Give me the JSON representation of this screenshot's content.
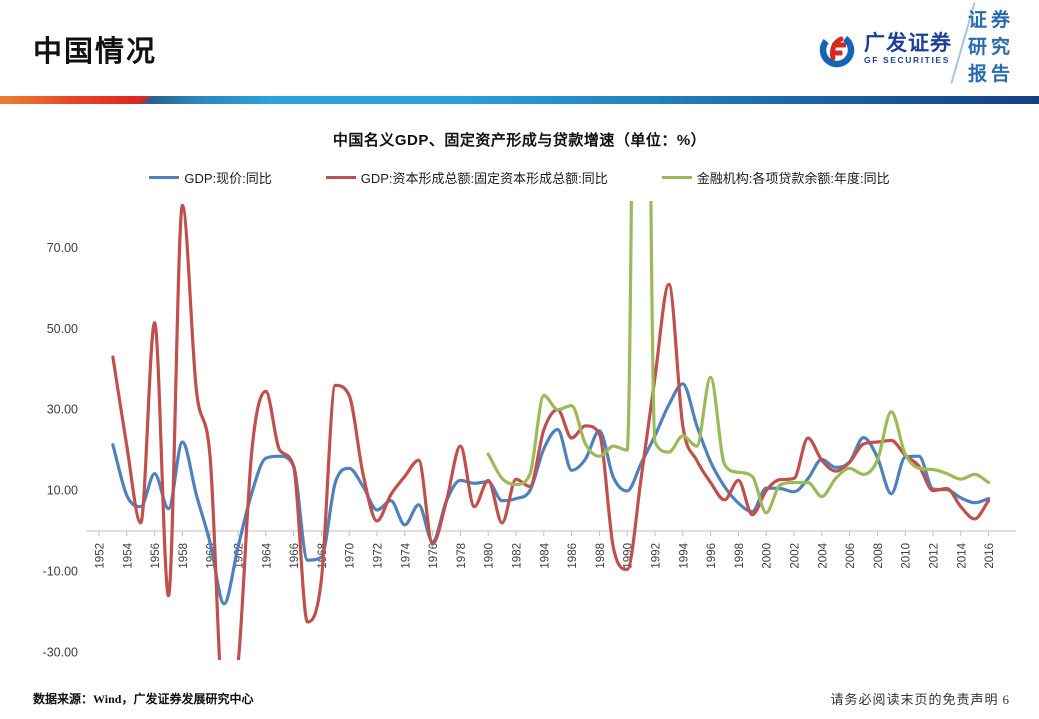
{
  "header": {
    "title": "中国情况",
    "brand": {
      "name_cn": "广发证券",
      "name_en": "GF SECURITIES",
      "report_label_lines": [
        "证券",
        "研究",
        "报告"
      ],
      "brand_blue": "#1d3f97",
      "brand_red": "#d42a23"
    }
  },
  "footer": {
    "source": "数据来源：Wind，广发证券发展研究中心",
    "disclaimer": "请务必阅读末页的免责声明",
    "page_number": "6"
  },
  "chart_data": {
    "type": "line",
    "title": "中国名义GDP、固定资产形成与贷款增速（单位：%）",
    "xlabel": "",
    "ylabel": "",
    "grid": false,
    "legend_position": "top",
    "ylim_plotted": [
      -32,
      82
    ],
    "y_ticks": [
      70,
      50,
      30,
      10,
      -10,
      -30
    ],
    "y_tick_labels": [
      "70.00",
      "50.00",
      "30.00",
      "10.00",
      "-10.00",
      "-30.00"
    ],
    "x_tick_labels": [
      "1952",
      "1954",
      "1956",
      "1958",
      "1960",
      "1962",
      "1964",
      "1966",
      "1968",
      "1970",
      "1972",
      "1974",
      "1976",
      "1978",
      "1980",
      "1982",
      "1984",
      "1986",
      "1988",
      "1990",
      "1992",
      "1994",
      "1996",
      "1998",
      "2000",
      "2002",
      "2004",
      "2006",
      "2008",
      "2010",
      "2012",
      "2014",
      "2016"
    ],
    "x": [
      1952,
      1953,
      1954,
      1955,
      1956,
      1957,
      1958,
      1959,
      1960,
      1961,
      1962,
      1963,
      1964,
      1965,
      1966,
      1967,
      1968,
      1969,
      1970,
      1971,
      1972,
      1973,
      1974,
      1975,
      1976,
      1977,
      1978,
      1979,
      1980,
      1981,
      1982,
      1983,
      1984,
      1985,
      1986,
      1987,
      1988,
      1989,
      1990,
      1991,
      1992,
      1993,
      1994,
      1995,
      1996,
      1997,
      1998,
      1999,
      2000,
      2001,
      2002,
      2003,
      2004,
      2005,
      2006,
      2007,
      2008,
      2009,
      2010,
      2011,
      2012,
      2013,
      2014,
      2015,
      2016
    ],
    "series": [
      {
        "name": "GDP:现价:同比",
        "color": "#4F81BD",
        "values": [
          null,
          21.3,
          8.8,
          6.0,
          14.2,
          5.5,
          22.0,
          9.0,
          -3.0,
          -18.0,
          -4.0,
          9.5,
          18.0,
          18.5,
          16.0,
          -7.2,
          -6.5,
          12.0,
          15.5,
          11.0,
          5.2,
          7.5,
          1.5,
          6.5,
          -2.7,
          7.5,
          12.5,
          11.8,
          12.2,
          7.5,
          8.0,
          10.0,
          20.3,
          25.1,
          15.0,
          17.8,
          24.8,
          13.3,
          9.9,
          16.7,
          23.6,
          31.2,
          36.4,
          26.1,
          17.1,
          11.0,
          6.9,
          4.8,
          10.6,
          10.5,
          9.7,
          12.9,
          17.7,
          15.7,
          17.1,
          23.1,
          18.2,
          9.2,
          18.3,
          18.5,
          10.4,
          10.2,
          8.2,
          7.0,
          8.0
        ]
      },
      {
        "name": "GDP:资本形成总额:固定资本形成总额:同比",
        "color": "#C0504D",
        "values": [
          null,
          43.0,
          21.0,
          2.0,
          51.5,
          -16.0,
          80.5,
          35.0,
          18.0,
          -45.0,
          -33.0,
          20.0,
          34.5,
          20.0,
          16.0,
          -22.5,
          -12.0,
          36.0,
          33.5,
          14.0,
          2.5,
          9.0,
          13.5,
          17.5,
          -3.2,
          7.5,
          21.0,
          6.0,
          12.5,
          2.0,
          12.8,
          11.0,
          25.0,
          30.0,
          23.0,
          26.0,
          24.0,
          -4.0,
          -9.5,
          13.0,
          38.0,
          61.0,
          26.0,
          17.5,
          12.0,
          7.7,
          12.5,
          4.0,
          10.0,
          12.7,
          13.0,
          23.0,
          17.5,
          14.8,
          17.0,
          21.5,
          22.0,
          22.4,
          18.7,
          16.0,
          10.0,
          10.5,
          6.0,
          3.0,
          7.5
        ]
      },
      {
        "name": "金融机构:各项贷款余额:年度:同比",
        "color": "#9BBB59",
        "values": [
          null,
          null,
          null,
          null,
          null,
          null,
          null,
          null,
          null,
          null,
          null,
          null,
          null,
          null,
          null,
          null,
          null,
          null,
          null,
          null,
          null,
          null,
          null,
          null,
          null,
          null,
          null,
          null,
          19.0,
          13.0,
          11.5,
          14.0,
          33.5,
          30.0,
          31.0,
          21.5,
          18.5,
          21.0,
          20.0,
          300.0,
          22.0,
          19.5,
          23.5,
          21.0,
          38.0,
          16.5,
          14.5,
          13.5,
          4.5,
          11.4,
          12.0,
          12.0,
          8.5,
          13.0,
          15.5,
          14.0,
          17.5,
          29.5,
          19.0,
          15.5,
          15.2,
          14.2,
          12.8,
          14.0,
          12.0
        ]
      }
    ]
  }
}
